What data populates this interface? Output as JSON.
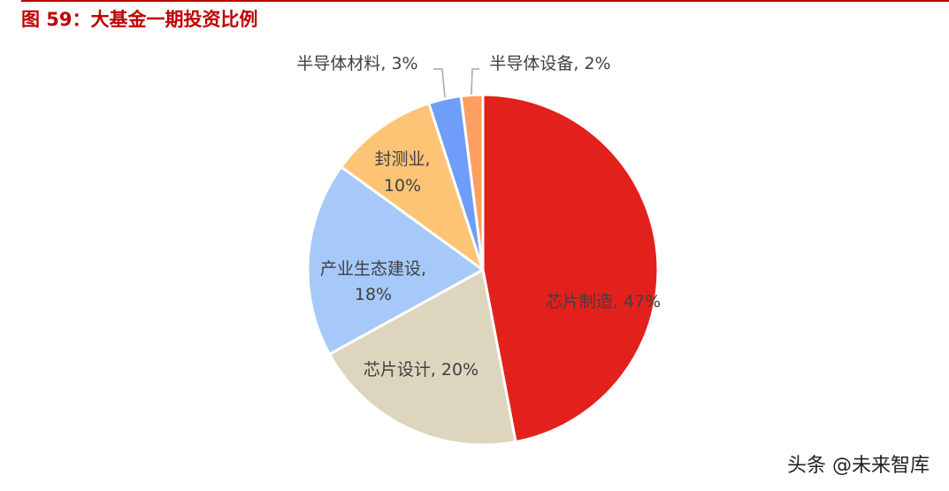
{
  "figure": {
    "title": "图 59：大基金一期投资比例"
  },
  "watermark": "头条 @未来智库",
  "colors": {
    "title": "#c00000",
    "label": "#404040",
    "leader": "#a6a6a6"
  },
  "chart_data": {
    "type": "pie",
    "start_angle_deg": 0,
    "direction": "clockwise",
    "slices": [
      {
        "label": "芯片制造, 47%",
        "category": "芯片制造",
        "value": 47,
        "color": "#e2211c"
      },
      {
        "label": "芯片设计, 20%",
        "category": "芯片设计",
        "value": 20,
        "color": "#ded5be"
      },
      {
        "label": "产业生态建设,",
        "label2": "18%",
        "category": "产业生态建设",
        "value": 18,
        "color": "#a6c9f9"
      },
      {
        "label": "封测业,",
        "label2": "10%",
        "category": "封测业",
        "value": 10,
        "color": "#fec476"
      },
      {
        "label": "半导体材料, 3%",
        "category": "半导体材料",
        "value": 3,
        "color": "#6e9dfa"
      },
      {
        "label": "半导体设备, 2%",
        "category": "半导体设备",
        "value": 2,
        "color": "#fd9f63"
      }
    ]
  }
}
